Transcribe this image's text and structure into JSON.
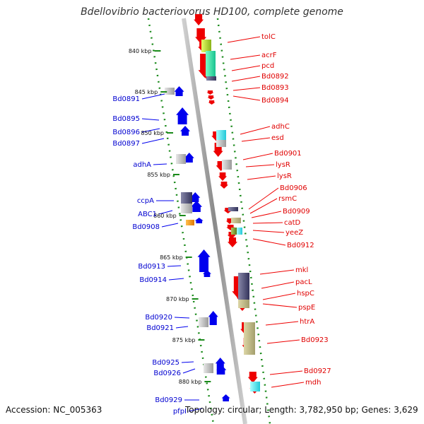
{
  "title": "Bdellovibrio bacteriovorus HD100, complete genome",
  "accession": "Accession: NC_005363",
  "topology": "Topology: circular; Length: 3,782,950 bp; Genes: 3,629",
  "kbp_labels": [
    "840 kbp",
    "845 kbp",
    "850 kbp",
    "855 kbp",
    "860 kbp",
    "865 kbp",
    "870 kbp",
    "875 kbp",
    "880 kbp"
  ],
  "right_labels": [
    "tolC",
    "acrF",
    "pcd",
    "Bd0892",
    "Bd0893",
    "Bd0894",
    "adhC",
    "esd",
    "Bd0901",
    "lysR",
    "lysR",
    "Bd0906",
    "rsmC",
    "Bd0909",
    "catD",
    "yeeZ",
    "Bd0912",
    "mkl",
    "pacL",
    "hspC",
    "pspE",
    "htrA",
    "Bd0923",
    "Bd0927",
    "mdh"
  ],
  "left_labels": [
    "Bd0891",
    "Bd0895",
    "Bd0896",
    "Bd0897",
    "adhA",
    "ccpA",
    "ABC1",
    "Bd0908",
    "Bd0913",
    "Bd0914",
    "Bd0920",
    "Bd0921",
    "Bd0925",
    "Bd0926",
    "Bd0929",
    "pfpI"
  ],
  "colors": {
    "forward": "#0000ee",
    "reverse": "#ee0000",
    "backbone": "#999999",
    "tick": "#1a8a1a"
  }
}
